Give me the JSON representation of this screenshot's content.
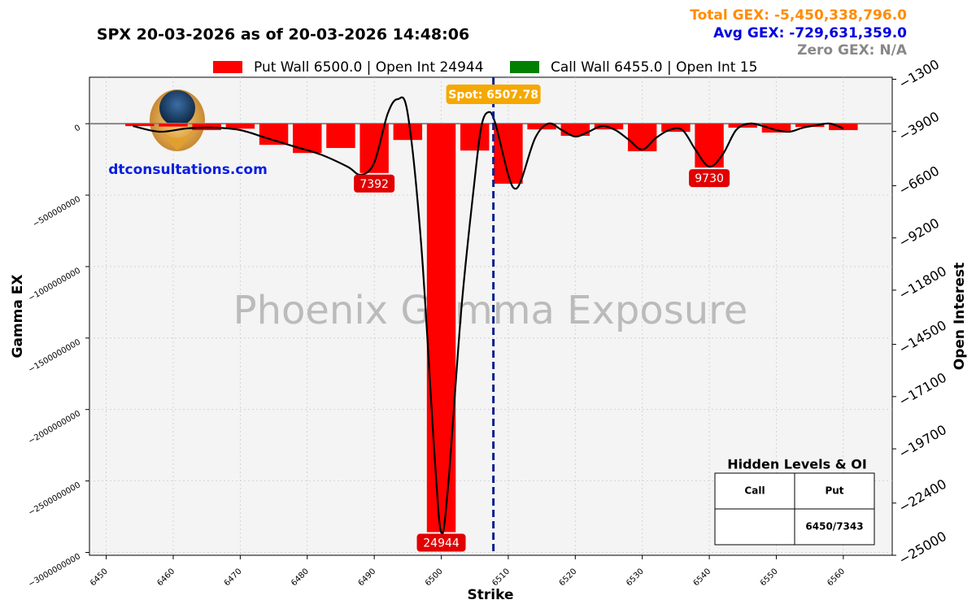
{
  "chart_data": {
    "type": "bar",
    "title": "SPX 20-03-2026 as of 20-03-2026 14:48:06",
    "total_gex": "Total GEX: -5,450,338,796.0",
    "avg_gex": "Avg GEX: -729,631,359.0",
    "zero_gex": "Zero GEX: N/A",
    "legend": [
      {
        "label": "Put Wall 6500.0 | Open Int 24944",
        "color": "#ff0000"
      },
      {
        "label": "Call Wall 6455.0 | Open Int 15",
        "color": "#008000"
      }
    ],
    "x_label": "Strike",
    "y_label": "Gamma EX",
    "y2_label": "Open Interest",
    "watermark": "Phoenix Gamma Exposure",
    "site": "dtconsultations.com",
    "spot_label": "Spot: 6507.78",
    "spot": 6507.78,
    "x": [
      6455,
      6460,
      6465,
      6470,
      6475,
      6480,
      6485,
      6490,
      6495,
      6500,
      6505,
      6510,
      6515,
      6520,
      6525,
      6530,
      6535,
      6540,
      6545,
      6550,
      6555,
      6560
    ],
    "values": [
      -17000000,
      -20000000,
      -45000000,
      -35000000,
      -148000000,
      -205000000,
      -170000000,
      -345000000,
      -114000000,
      -2858000000,
      -188000000,
      -420000000,
      -40000000,
      -85000000,
      -40000000,
      -193000000,
      -57000000,
      -307000000,
      -28000000,
      -62000000,
      -23000000,
      -45000000
    ],
    "color": "#ff0000",
    "bar_labels": [
      {
        "x": 6490,
        "label": "7392"
      },
      {
        "x": 6500,
        "label": "24944"
      },
      {
        "x": 6540,
        "label": "9730"
      }
    ],
    "curve": {
      "axis": "y2",
      "color": "#000000",
      "x": [
        6454,
        6458,
        6462,
        6466,
        6470,
        6474,
        6478,
        6482,
        6486,
        6488,
        6490,
        6492,
        6493.5,
        6495,
        6497,
        6499,
        6500,
        6501,
        6503,
        6505,
        6506,
        6507,
        6508,
        6510,
        6511,
        6512,
        6514,
        6516,
        6518,
        6520,
        6522,
        6524,
        6526,
        6528,
        6530,
        6532,
        6534,
        6536,
        6538,
        6540,
        6542,
        6544,
        6546,
        6548,
        6550,
        6552,
        6554,
        6556,
        6558,
        6560
      ],
      "values": [
        -3629,
        -3912,
        -3750,
        -3710,
        -3831,
        -4236,
        -4641,
        -5046,
        -5653,
        -6058,
        -5450,
        -3022,
        -2293,
        -3022,
        -9498,
        -20023,
        -23869,
        -21642,
        -12737,
        -6260,
        -3629,
        -2941,
        -3426,
        -6058,
        -6746,
        -6260,
        -4236,
        -3507,
        -3831,
        -4155,
        -3912,
        -3629,
        -3831,
        -4317,
        -4803,
        -4236,
        -3831,
        -3831,
        -4843,
        -5653,
        -5046,
        -3831,
        -3507,
        -3629,
        -3831,
        -3912,
        -3710,
        -3588,
        -3507,
        -3750
      ]
    },
    "xlim": [
      6447.5,
      6567.3
    ],
    "xticks": [
      6450,
      6460,
      6470,
      6480,
      6490,
      6500,
      6510,
      6520,
      6530,
      6540,
      6550,
      6560
    ],
    "ylim": [
      -3020000000,
      325000000
    ],
    "yticks": [
      0,
      {
        "value": -500000000,
        "label": "−500000000"
      },
      {
        "value": -1000000000,
        "label": "−1000000000"
      },
      {
        "value": -1500000000,
        "label": "−1500000000"
      },
      {
        "value": -2000000000,
        "label": "−2000000000"
      },
      {
        "value": -2500000000,
        "label": "−2500000000"
      },
      {
        "value": -3000000000,
        "label": "−3000000000"
      }
    ],
    "y2lim": [
      -25000,
      -1200
    ],
    "y2ticks": [
      {
        "value": -1300,
        "label": "−1300"
      },
      {
        "value": -3900,
        "label": "−3900"
      },
      {
        "value": -6600,
        "label": "−6600"
      },
      {
        "value": -9200,
        "label": "−9200"
      },
      {
        "value": -11800,
        "label": "−11800"
      },
      {
        "value": -14500,
        "label": "−14500"
      },
      {
        "value": -17100,
        "label": "−17100"
      },
      {
        "value": -19700,
        "label": "−19700"
      },
      {
        "value": -22400,
        "label": "−22400"
      },
      {
        "value": -25000,
        "label": "−25000"
      }
    ],
    "grid": true,
    "table": {
      "title": "Hidden Levels & OI",
      "headers": [
        "Call",
        "Put"
      ],
      "rows": [
        [
          "",
          "6450/7343"
        ]
      ]
    }
  }
}
